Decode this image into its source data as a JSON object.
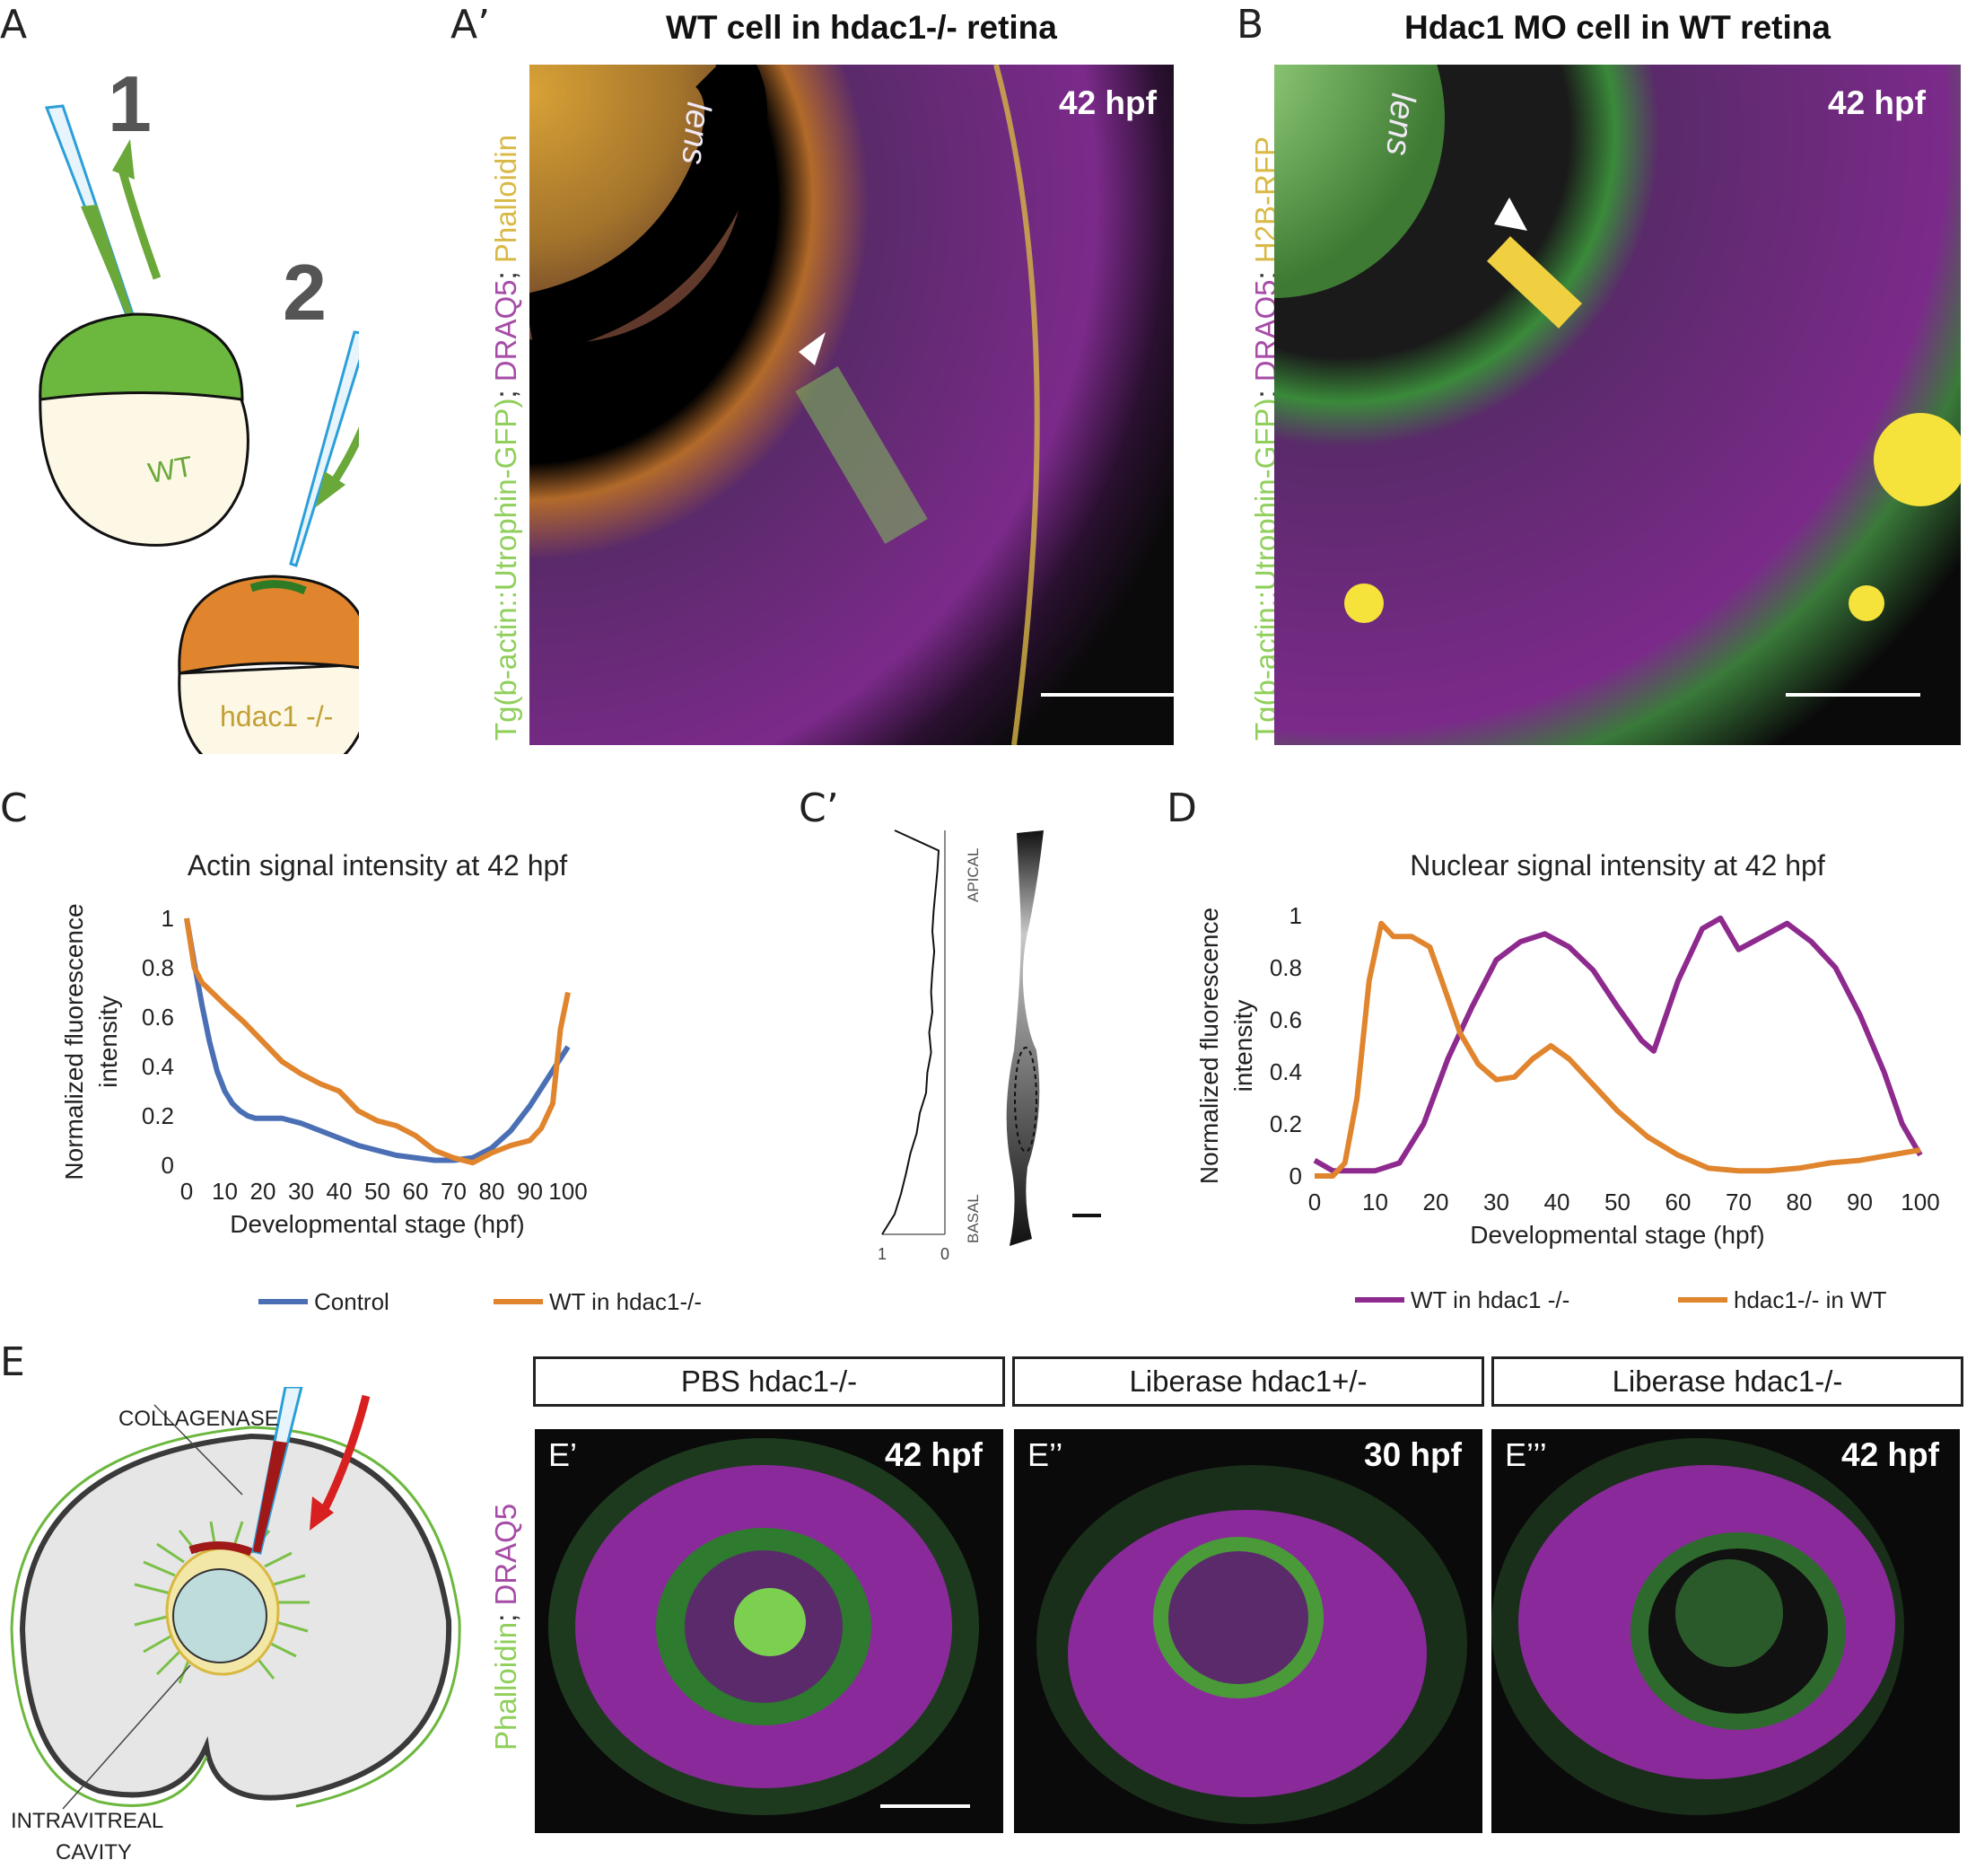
{
  "panels": {
    "A": {
      "label": "A",
      "step1": "1",
      "step2": "2",
      "wt": "WT",
      "mut": "hdac1 -/-"
    },
    "A_prime": {
      "label": "A’",
      "title": "WT cell in hdac1-/- retina",
      "hpf": "42 hpf",
      "lens": "lens",
      "channel_green": "Tg(b-actin::Utrophin-GFP)",
      "channel_sep1": "; ",
      "channel_magenta": "DRAQ5",
      "channel_sep2": "; ",
      "channel_yellow": "Phalloidin"
    },
    "B": {
      "label": "B",
      "title": "Hdac1 MO cell in WT retina",
      "hpf": "42 hpf",
      "lens": "lens",
      "channel_green": "Tg(b-actin::Utrophin-GFP)",
      "channel_sep1": "; ",
      "channel_magenta": "DRAQ5",
      "channel_sep2": "; ",
      "channel_yellow": "H2B-RFP"
    },
    "C": {
      "label": "C"
    },
    "C_prime": {
      "label": "C’",
      "apical": "APICAL",
      "basal": "BASAL",
      "tick_left": "1",
      "tick_right": "0"
    },
    "D": {
      "label": "D"
    },
    "E": {
      "label": "E",
      "collagenase": "COLLAGENASE",
      "cavity_line1": "INTRAVITREAL",
      "cavity_line2": "CAVITY",
      "head1": "PBS hdac1-/-",
      "head2": "Liberase hdac1+/-",
      "head3": "Liberase hdac1-/-",
      "sub1": "E’",
      "sub2": "E’’",
      "sub3": "E’’’",
      "hpf1": "42 hpf",
      "hpf2": "30 hpf",
      "hpf3": "42 hpf",
      "channel_green": "Phalloidin",
      "channel_sep": "; ",
      "channel_magenta": "DRAQ5"
    }
  },
  "chart_data": [
    {
      "type": "line",
      "title": "Actin signal intensity at 42 hpf",
      "xlabel": "Developmental stage (hpf)",
      "ylabel_line1": "Normalized fluorescence",
      "ylabel_line2": "intensity",
      "xlim": [
        0,
        100
      ],
      "ylim": [
        0,
        1
      ],
      "xticks": [
        "0",
        "10",
        "20",
        "30",
        "40",
        "50",
        "60",
        "70",
        "80",
        "90",
        "100"
      ],
      "yticks": [
        "0",
        "0.2",
        "0.4",
        "0.6",
        "0.8",
        "1"
      ],
      "series": [
        {
          "name": "Control",
          "color": "#4a6fb5",
          "x": [
            0,
            2,
            4,
            6,
            8,
            10,
            12,
            14,
            16,
            18,
            20,
            25,
            30,
            35,
            40,
            45,
            50,
            55,
            60,
            65,
            70,
            75,
            80,
            85,
            90,
            95,
            100
          ],
          "y": [
            1.0,
            0.82,
            0.65,
            0.5,
            0.38,
            0.3,
            0.25,
            0.22,
            0.2,
            0.19,
            0.19,
            0.19,
            0.17,
            0.14,
            0.11,
            0.08,
            0.06,
            0.04,
            0.03,
            0.02,
            0.02,
            0.03,
            0.07,
            0.14,
            0.24,
            0.36,
            0.48
          ]
        },
        {
          "name": "WT in hdac1-/-",
          "color": "#e0852e",
          "x": [
            0,
            2,
            4,
            6,
            10,
            15,
            20,
            25,
            30,
            35,
            40,
            45,
            50,
            55,
            60,
            65,
            70,
            75,
            80,
            85,
            90,
            93,
            96,
            98,
            100
          ],
          "y": [
            1.0,
            0.8,
            0.74,
            0.71,
            0.65,
            0.58,
            0.5,
            0.42,
            0.37,
            0.33,
            0.3,
            0.22,
            0.18,
            0.16,
            0.12,
            0.06,
            0.03,
            0.01,
            0.05,
            0.08,
            0.1,
            0.15,
            0.25,
            0.55,
            0.7
          ]
        }
      ],
      "legend": "bottom"
    },
    {
      "type": "line",
      "title": "Nuclear signal intensity at 42 hpf",
      "xlabel": "Developmental stage (hpf)",
      "ylabel_line1": "Normalized fluorescence",
      "ylabel_line2": "intensity",
      "xlim": [
        0,
        100
      ],
      "ylim": [
        0,
        1
      ],
      "xticks": [
        "0",
        "10",
        "20",
        "30",
        "40",
        "50",
        "60",
        "70",
        "80",
        "90",
        "100"
      ],
      "yticks": [
        "0",
        "0.2",
        "0.4",
        "0.6",
        "0.8",
        "1"
      ],
      "series": [
        {
          "name": "WT in hdac1 -/-",
          "color": "#8e2a8e",
          "x": [
            0,
            3,
            6,
            10,
            14,
            18,
            22,
            26,
            30,
            34,
            38,
            42,
            46,
            50,
            54,
            56,
            60,
            64,
            67,
            70,
            74,
            78,
            82,
            86,
            90,
            94,
            97,
            100
          ],
          "y": [
            0.06,
            0.02,
            0.02,
            0.02,
            0.05,
            0.2,
            0.45,
            0.65,
            0.83,
            0.9,
            0.93,
            0.88,
            0.79,
            0.65,
            0.52,
            0.48,
            0.75,
            0.95,
            0.99,
            0.87,
            0.92,
            0.97,
            0.9,
            0.8,
            0.62,
            0.4,
            0.2,
            0.08
          ]
        },
        {
          "name": "hdac1-/- in WT",
          "color": "#e0852e",
          "x": [
            0,
            3,
            5,
            7,
            9,
            11,
            13,
            16,
            19,
            21,
            24,
            27,
            30,
            33,
            36,
            39,
            42,
            46,
            50,
            55,
            60,
            65,
            70,
            75,
            80,
            85,
            90,
            95,
            100
          ],
          "y": [
            0.0,
            0.0,
            0.05,
            0.3,
            0.75,
            0.97,
            0.92,
            0.92,
            0.88,
            0.75,
            0.55,
            0.43,
            0.37,
            0.38,
            0.45,
            0.5,
            0.45,
            0.35,
            0.25,
            0.15,
            0.08,
            0.03,
            0.02,
            0.02,
            0.03,
            0.05,
            0.06,
            0.08,
            0.1
          ]
        }
      ],
      "legend": "bottom"
    },
    {
      "type": "line",
      "title": "",
      "orientation": "vertical-profile",
      "apical_label": "APICAL",
      "basal_label": "BASAL",
      "xlim": [
        1,
        0
      ],
      "xticks": [
        "1",
        "0"
      ],
      "series": [
        {
          "position": [
            0,
            0.05,
            0.1,
            0.15,
            0.2,
            0.25,
            0.3,
            0.35,
            0.4,
            0.45,
            0.5,
            0.55,
            0.6,
            0.65,
            0.7,
            0.75,
            0.8,
            0.85,
            0.9,
            0.95,
            1.0
          ],
          "value": [
            0.8,
            0.1,
            0.12,
            0.15,
            0.18,
            0.2,
            0.17,
            0.2,
            0.22,
            0.2,
            0.25,
            0.22,
            0.28,
            0.3,
            0.4,
            0.45,
            0.55,
            0.62,
            0.7,
            0.8,
            1.0
          ]
        }
      ]
    }
  ]
}
